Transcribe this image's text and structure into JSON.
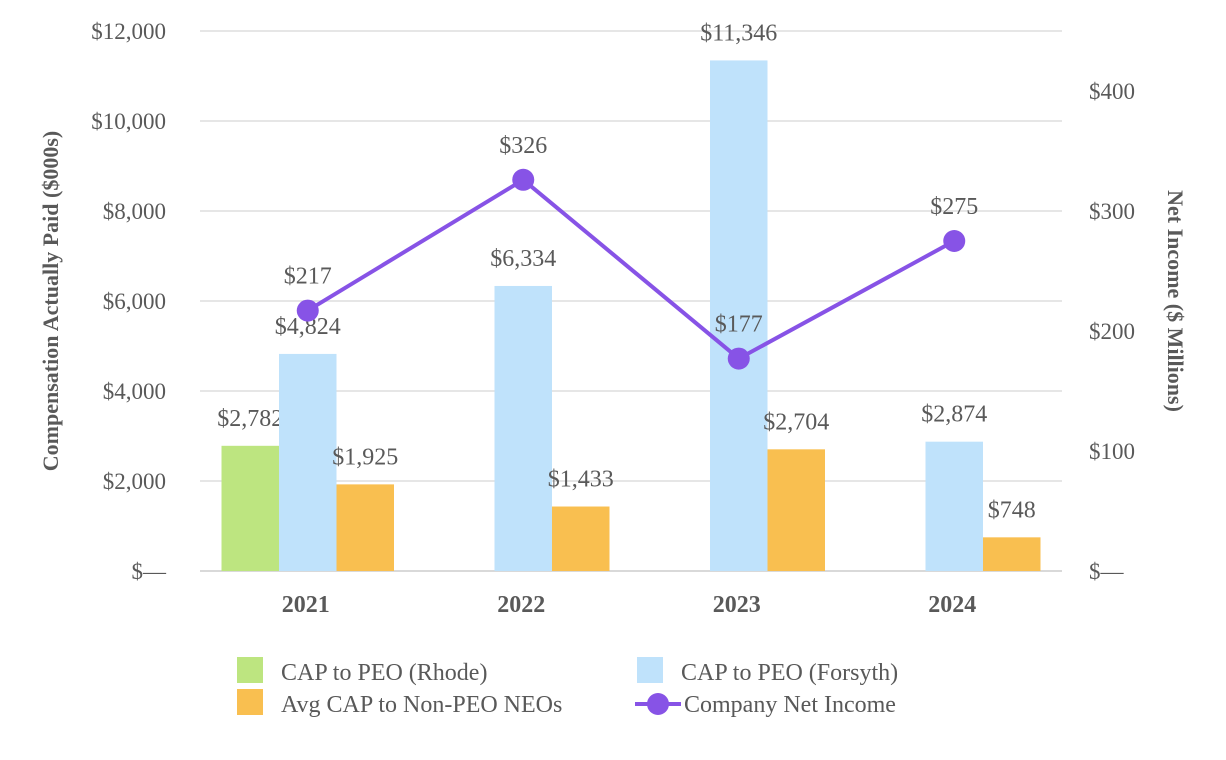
{
  "chart_data": {
    "type": "bar",
    "categories": [
      "2021",
      "2022",
      "2023",
      "2024"
    ],
    "ylabel": "Compensation Actually Paid ($000s)",
    "y2label": "Net Income ($ Millions)",
    "ylim": [
      0,
      12000
    ],
    "y2lim": [
      0,
      450
    ],
    "yticks": [
      {
        "value": 0,
        "label": "$—"
      },
      {
        "value": 2000,
        "label": "$2,000"
      },
      {
        "value": 4000,
        "label": "$4,000"
      },
      {
        "value": 6000,
        "label": "$6,000"
      },
      {
        "value": 8000,
        "label": "$8,000"
      },
      {
        "value": 10000,
        "label": "$10,000"
      },
      {
        "value": 12000,
        "label": "$12,000"
      }
    ],
    "y2ticks": [
      {
        "value": 0,
        "label": "$—"
      },
      {
        "value": 100,
        "label": "$100"
      },
      {
        "value": 200,
        "label": "$200"
      },
      {
        "value": 300,
        "label": "$300"
      },
      {
        "value": 400,
        "label": "$400"
      }
    ],
    "grid": true,
    "legend_position": "bottom",
    "series": [
      {
        "name": "CAP to PEO (Rhode)",
        "type": "bar",
        "color": "#bde580",
        "values": [
          2782,
          null,
          null,
          null
        ],
        "labels": [
          "$2,782",
          "",
          "",
          ""
        ]
      },
      {
        "name": "CAP to PEO (Forsyth)",
        "type": "bar",
        "color": "#bfe2fb",
        "values": [
          4824,
          6334,
          11346,
          2874
        ],
        "labels": [
          "$4,824",
          "$6,334",
          "$11,346",
          "$2,874"
        ]
      },
      {
        "name": "Avg CAP to Non-PEO NEOs",
        "type": "bar",
        "color": "#f9bf50",
        "values": [
          1925,
          1433,
          2704,
          748
        ],
        "labels": [
          "$1,925",
          "$1,433",
          "$2,704",
          "$748"
        ]
      },
      {
        "name": "Company Net Income",
        "type": "line",
        "axis": "right",
        "color": "#8753e6",
        "values": [
          217,
          326,
          177,
          275
        ],
        "labels": [
          "$217",
          "$326",
          "$177",
          "$275"
        ]
      }
    ]
  }
}
